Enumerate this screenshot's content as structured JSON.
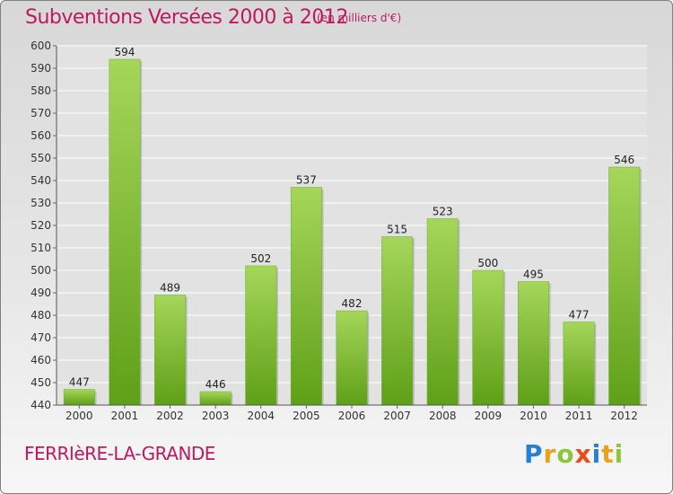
{
  "header": {
    "title": "Subventions Versées 2000 à 2012",
    "subtitle": "(en milliers d'€)"
  },
  "footer": {
    "place": "FERRIèRE-LA-GRANDE",
    "logo": "Proxiti"
  },
  "colors": {
    "accent": "#c0185f",
    "bar_light": "#a5d65a",
    "bar_dark": "#5fa018",
    "logo_letters": [
      "#2a7fd4",
      "#e8a21b",
      "#8cc63f",
      "#e74c1c",
      "#2a7fd4",
      "#e8a21b",
      "#8cc63f"
    ]
  },
  "chart_data": {
    "type": "bar",
    "title": "Subventions Versées 2000 à 2012",
    "subtitle": "(en milliers d'€)",
    "categories": [
      "2000",
      "2001",
      "2002",
      "2003",
      "2004",
      "2005",
      "2006",
      "2007",
      "2008",
      "2009",
      "2010",
      "2011",
      "2012"
    ],
    "values": [
      447,
      594,
      489,
      446,
      502,
      537,
      482,
      515,
      523,
      500,
      495,
      477,
      546
    ],
    "ylim": [
      440,
      600
    ],
    "yticks": [
      440,
      450,
      460,
      470,
      480,
      490,
      500,
      510,
      520,
      530,
      540,
      550,
      560,
      570,
      580,
      590,
      600
    ],
    "grid": true,
    "data_labels": true
  }
}
